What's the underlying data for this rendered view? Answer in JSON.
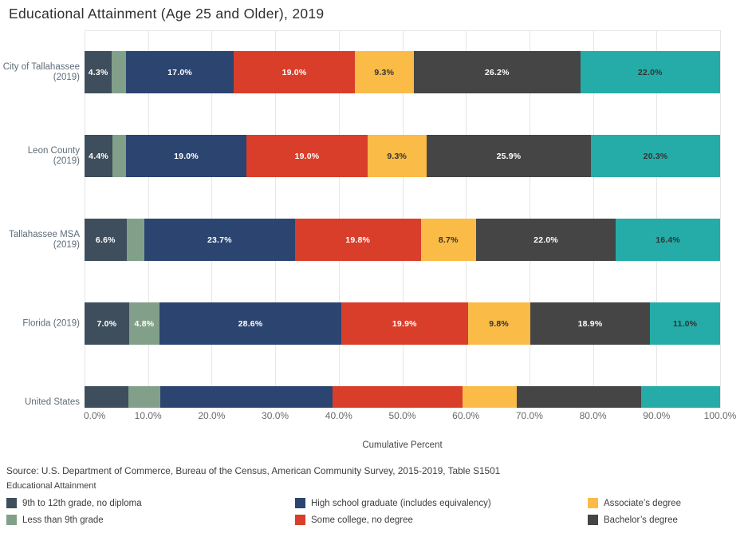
{
  "chart_data": {
    "type": "bar",
    "variant": "stacked-horizontal",
    "title": "Educational Attainment (Age 25 and Older), 2019",
    "xlabel": "Cumulative Percent",
    "xlim": [
      0,
      100
    ],
    "x_ticks": [
      "0.0%",
      "10.0%",
      "20.0%",
      "30.0%",
      "40.0%",
      "50.0%",
      "60.0%",
      "70.0%",
      "80.0%",
      "90.0%",
      "100.0%"
    ],
    "grid": true,
    "legend_position": "bottom",
    "categories": [
      [
        "City of Tallahassee",
        "(2019)"
      ],
      [
        "Leon County",
        "(2019)"
      ],
      [
        "Tallahassee MSA",
        "(2019)"
      ],
      [
        "Florida (2019)"
      ],
      [
        "United States",
        "(2019)"
      ]
    ],
    "series": [
      {
        "name": "9th to 12th grade, no diploma",
        "color": "#3e4e5c",
        "label_color": "#ffffff",
        "values": [
          4.3,
          4.4,
          6.6,
          7.0,
          6.9
        ]
      },
      {
        "name": "Less than 9th grade",
        "color": "#82a089",
        "label_color": "#ffffff",
        "values": [
          2.2,
          2.1,
          2.8,
          4.8,
          5.0
        ]
      },
      {
        "name": "High school graduate (includes equivalency)",
        "color": "#2b4570",
        "label_color": "#ffffff",
        "values": [
          17.0,
          19.0,
          23.7,
          28.6,
          27.1
        ]
      },
      {
        "name": "Some college, no degree",
        "color": "#d93e2a",
        "label_color": "#ffffff",
        "values": [
          19.0,
          19.0,
          19.8,
          19.9,
          20.5
        ]
      },
      {
        "name": "Associate’s degree",
        "color": "#fabb47",
        "label_color": "#333333",
        "values": [
          9.3,
          9.3,
          8.7,
          9.8,
          8.5
        ]
      },
      {
        "name": "Bachelor’s degree",
        "color": "#454545",
        "label_color": "#ffffff",
        "values": [
          26.2,
          25.9,
          22.0,
          18.9,
          19.6
        ]
      },
      {
        "name": "",
        "color": "#25aca8",
        "label_color": "#333333",
        "values": [
          22.0,
          20.3,
          16.4,
          11.0,
          12.4
        ]
      }
    ],
    "data_labels": {
      "format": "one-decimal-percent",
      "min_value_to_show": 4.0,
      "visible_by_row": [
        true,
        true,
        true,
        true,
        false
      ]
    }
  },
  "source": "Source: U.S. Department of Commerce, Bureau of the Census, American Community Survey, 2015-2019, Table S1501",
  "legend": {
    "title": "Educational Attainment",
    "rows": [
      [
        {
          "label": "9th to 12th grade, no diploma",
          "color": "#3e4e5c"
        },
        {
          "label": "High school graduate (includes equivalency)",
          "color": "#2b4570"
        },
        {
          "label": "Associate’s degree",
          "color": "#fabb47"
        }
      ],
      [
        {
          "label": "Less than 9th grade",
          "color": "#82a089"
        },
        {
          "label": "Some college, no degree",
          "color": "#d93e2a"
        },
        {
          "label": "Bachelor’s degree",
          "color": "#454545"
        }
      ]
    ]
  }
}
